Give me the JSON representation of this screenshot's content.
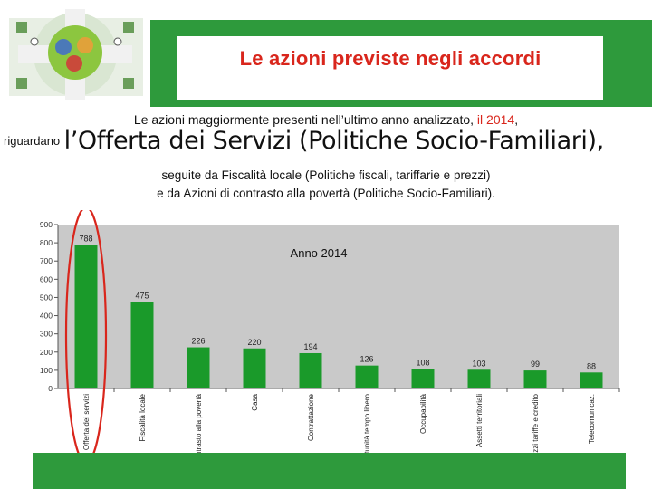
{
  "slide": {
    "title": "Le azioni previste negli accordi",
    "line1_prefix": "Le azioni maggiormente presenti nell’ultimo anno analizzato, ",
    "line1_accent": "il 2014",
    "line1_suffix": ",",
    "line2_prefix": "riguardano",
    "line2_big": "l’Offerta dei Servizi (Politiche Socio-Familiari),",
    "line3": "seguite da Fiscalità locale (Politiche fiscali, tariffarie e prezzi)",
    "line4": "e da Azioni di contrasto alla povertà (Politiche Socio-Familiari)."
  },
  "colors": {
    "header_green": "#2e9a3c",
    "bar_green": "#1a9a2a",
    "accent_red": "#d9261c",
    "plot_bg": "#c9c9c9"
  },
  "chart_data": {
    "type": "bar",
    "annotation": "Anno 2014",
    "categories": [
      "Offerta dei servizi",
      "Fiscalità locale",
      "Contrasto alla povertà",
      "Casa",
      "Contrattazione",
      "Opportunità tempo libero",
      "Occupabilità",
      "Assetti territoriali",
      "Prezzi tariffe e credito",
      "Telecomunicaz."
    ],
    "values": [
      788,
      475,
      226,
      220,
      194,
      126,
      108,
      103,
      99,
      88
    ],
    "value_labels": [
      "788",
      "475",
      "226",
      "220",
      "194",
      "126",
      "108",
      "103",
      "99",
      "88"
    ],
    "y_ticks": [
      "0",
      "100",
      "200",
      "300",
      "400",
      "500",
      "600",
      "700",
      "800",
      "900"
    ],
    "ylim": [
      0,
      900
    ],
    "grid": false,
    "highlight": "Offerta dei servizi"
  }
}
